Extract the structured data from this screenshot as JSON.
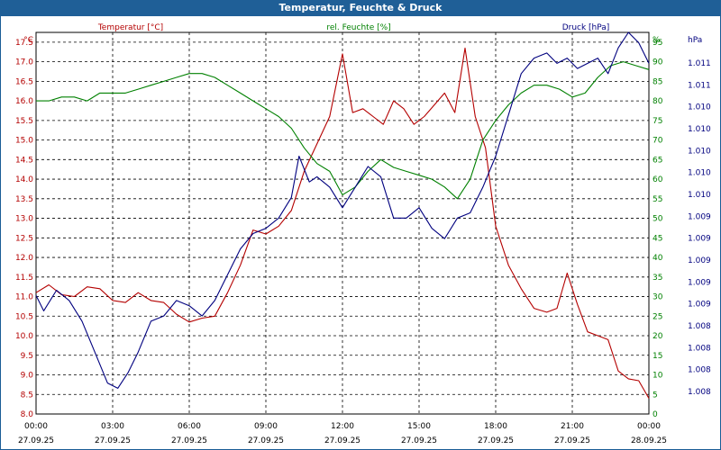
{
  "chart_data": {
    "type": "line",
    "title": "Temperatur, Feuchte & Druck",
    "legend": {
      "temperature": "Temperatur [°C]",
      "humidity": "rel. Feuchte [%]",
      "pressure": "Druck [hPa]"
    },
    "x_ticks": [
      {
        "time": "00:00",
        "date": "27.09.25"
      },
      {
        "time": "03:00",
        "date": "27.09.25"
      },
      {
        "time": "06:00",
        "date": "27.09.25"
      },
      {
        "time": "09:00",
        "date": "27.09.25"
      },
      {
        "time": "12:00",
        "date": "27.09.25"
      },
      {
        "time": "15:00",
        "date": "27.09.25"
      },
      {
        "time": "18:00",
        "date": "27.09.25"
      },
      {
        "time": "21:00",
        "date": "27.09.25"
      },
      {
        "time": "00:00",
        "date": "28.09.25"
      }
    ],
    "xlim_hours": [
      0,
      24
    ],
    "axes": {
      "temperature": {
        "unit": "°C",
        "ylim": [
          8.0,
          17.75
        ],
        "ticks": [
          "8.0",
          "8.5",
          "9.0",
          "9.5",
          "10.0",
          "10.5",
          "11.0",
          "11.5",
          "12.0",
          "12.5",
          "13.0",
          "13.5",
          "14.0",
          "14.5",
          "15.0",
          "15.5",
          "16.0",
          "16.5",
          "17.0",
          "17.5"
        ]
      },
      "humidity": {
        "unit": "%",
        "ylim": [
          0,
          97.5
        ],
        "ticks": [
          "0",
          "5",
          "10",
          "15",
          "20",
          "25",
          "30",
          "35",
          "40",
          "45",
          "50",
          "55",
          "60",
          "65",
          "70",
          "75",
          "80",
          "85",
          "90",
          "95"
        ]
      },
      "pressure": {
        "unit": "hPa",
        "ylim": [
          1007.6,
          1011.3
        ],
        "ticks": [
          "1.008",
          "1.008",
          "1.008",
          "1.008",
          "1.009",
          "1.009",
          "1.009",
          "1.009",
          "1.009",
          "1.010",
          "1.010",
          "1.010",
          "1.010",
          "1.010",
          "1.011",
          "1.011"
        ]
      }
    },
    "series": [
      {
        "name": "Temperatur",
        "color": "#b40000",
        "axis": "temperature",
        "points": [
          [
            0,
            11.1
          ],
          [
            0.5,
            11.3
          ],
          [
            1,
            11.05
          ],
          [
            1.5,
            11.0
          ],
          [
            2,
            11.25
          ],
          [
            2.5,
            11.2
          ],
          [
            3,
            10.9
          ],
          [
            3.5,
            10.85
          ],
          [
            4,
            11.1
          ],
          [
            4.5,
            10.9
          ],
          [
            5,
            10.85
          ],
          [
            5.5,
            10.55
          ],
          [
            6,
            10.35
          ],
          [
            6.5,
            10.45
          ],
          [
            7,
            10.5
          ],
          [
            7.5,
            11.1
          ],
          [
            8,
            11.8
          ],
          [
            8.5,
            12.7
          ],
          [
            9,
            12.6
          ],
          [
            9.5,
            12.8
          ],
          [
            10,
            13.2
          ],
          [
            10.5,
            14.2
          ],
          [
            11,
            14.9
          ],
          [
            11.5,
            15.6
          ],
          [
            12,
            17.2
          ],
          [
            12.4,
            15.7
          ],
          [
            12.8,
            15.8
          ],
          [
            13.2,
            15.6
          ],
          [
            13.6,
            15.4
          ],
          [
            14,
            16.0
          ],
          [
            14.4,
            15.8
          ],
          [
            14.8,
            15.4
          ],
          [
            15.2,
            15.6
          ],
          [
            15.6,
            15.9
          ],
          [
            16,
            16.2
          ],
          [
            16.4,
            15.7
          ],
          [
            16.8,
            17.35
          ],
          [
            17.2,
            15.6
          ],
          [
            17.6,
            14.8
          ],
          [
            18,
            12.8
          ],
          [
            18.5,
            11.8
          ],
          [
            19,
            11.2
          ],
          [
            19.5,
            10.7
          ],
          [
            20,
            10.6
          ],
          [
            20.4,
            10.7
          ],
          [
            20.8,
            11.6
          ],
          [
            21.2,
            10.8
          ],
          [
            21.6,
            10.1
          ],
          [
            22,
            10.0
          ],
          [
            22.4,
            9.9
          ],
          [
            22.8,
            9.1
          ],
          [
            23.2,
            8.9
          ],
          [
            23.6,
            8.85
          ],
          [
            24,
            8.4
          ]
        ]
      },
      {
        "name": "rel. Feuchte",
        "color": "#008000",
        "axis": "humidity",
        "points": [
          [
            0,
            80
          ],
          [
            0.5,
            80
          ],
          [
            1,
            81
          ],
          [
            1.5,
            81
          ],
          [
            2,
            80
          ],
          [
            2.5,
            82
          ],
          [
            3,
            82
          ],
          [
            3.5,
            82
          ],
          [
            4,
            83
          ],
          [
            4.5,
            84
          ],
          [
            5,
            85
          ],
          [
            5.5,
            86
          ],
          [
            6,
            87
          ],
          [
            6.5,
            87
          ],
          [
            7,
            86
          ],
          [
            7.5,
            84
          ],
          [
            8,
            82
          ],
          [
            8.5,
            80
          ],
          [
            9,
            78
          ],
          [
            9.5,
            76
          ],
          [
            10,
            73
          ],
          [
            10.5,
            68
          ],
          [
            11,
            64
          ],
          [
            11.5,
            62
          ],
          [
            12,
            56
          ],
          [
            12.5,
            58
          ],
          [
            13,
            62
          ],
          [
            13.5,
            65
          ],
          [
            14,
            63
          ],
          [
            14.5,
            62
          ],
          [
            15,
            61
          ],
          [
            15.5,
            60
          ],
          [
            16,
            58
          ],
          [
            16.5,
            55
          ],
          [
            17,
            60
          ],
          [
            17.5,
            70
          ],
          [
            18,
            75
          ],
          [
            18.5,
            79
          ],
          [
            19,
            82
          ],
          [
            19.5,
            84
          ],
          [
            20,
            84
          ],
          [
            20.5,
            83
          ],
          [
            21,
            81
          ],
          [
            21.5,
            82
          ],
          [
            22,
            86
          ],
          [
            22.5,
            89
          ],
          [
            23,
            90
          ],
          [
            23.5,
            89
          ],
          [
            24,
            88
          ]
        ]
      },
      {
        "name": "Druck",
        "color": "#00007f",
        "axis": "pressure",
        "points": [
          [
            0,
            1008.75
          ],
          [
            0.3,
            1008.6
          ],
          [
            0.8,
            1008.8
          ],
          [
            1.3,
            1008.7
          ],
          [
            1.8,
            1008.5
          ],
          [
            2.3,
            1008.2
          ],
          [
            2.8,
            1007.9
          ],
          [
            3.2,
            1007.85
          ],
          [
            3.6,
            1008.0
          ],
          [
            4,
            1008.2
          ],
          [
            4.5,
            1008.5
          ],
          [
            5,
            1008.55
          ],
          [
            5.5,
            1008.7
          ],
          [
            6,
            1008.65
          ],
          [
            6.5,
            1008.55
          ],
          [
            7,
            1008.7
          ],
          [
            7.5,
            1008.95
          ],
          [
            8,
            1009.2
          ],
          [
            8.5,
            1009.35
          ],
          [
            9,
            1009.4
          ],
          [
            9.5,
            1009.5
          ],
          [
            10,
            1009.7
          ],
          [
            10.3,
            1010.1
          ],
          [
            10.7,
            1009.85
          ],
          [
            11,
            1009.9
          ],
          [
            11.5,
            1009.8
          ],
          [
            12,
            1009.6
          ],
          [
            12.5,
            1009.8
          ],
          [
            13,
            1010.0
          ],
          [
            13.5,
            1009.9
          ],
          [
            14,
            1009.5
          ],
          [
            14.5,
            1009.5
          ],
          [
            15,
            1009.6
          ],
          [
            15.5,
            1009.4
          ],
          [
            16,
            1009.3
          ],
          [
            16.5,
            1009.5
          ],
          [
            17,
            1009.55
          ],
          [
            17.5,
            1009.8
          ],
          [
            18,
            1010.1
          ],
          [
            18.5,
            1010.5
          ],
          [
            19,
            1010.9
          ],
          [
            19.5,
            1011.05
          ],
          [
            20,
            1011.1
          ],
          [
            20.4,
            1011.0
          ],
          [
            20.8,
            1011.05
          ],
          [
            21.2,
            1010.95
          ],
          [
            21.6,
            1011.0
          ],
          [
            22,
            1011.05
          ],
          [
            22.4,
            1010.9
          ],
          [
            22.8,
            1011.15
          ],
          [
            23.2,
            1011.3
          ],
          [
            23.6,
            1011.2
          ],
          [
            24,
            1011.0
          ]
        ]
      }
    ]
  }
}
